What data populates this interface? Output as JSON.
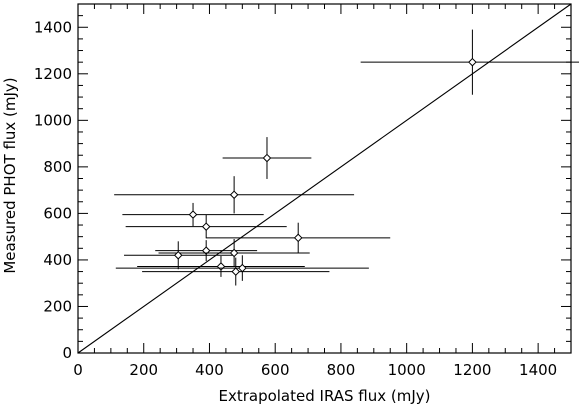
{
  "chart_data": {
    "type": "scatter",
    "title": "",
    "xlabel": "Extrapolated IRAS flux (mJy)",
    "ylabel": "Measured PHOT flux (mJy)",
    "xlim": [
      0,
      1500
    ],
    "ylim": [
      0,
      1500
    ],
    "x_ticks": [
      0,
      200,
      400,
      600,
      800,
      1000,
      1200,
      1400
    ],
    "y_ticks": [
      0,
      200,
      400,
      600,
      800,
      1000,
      1200,
      1400
    ],
    "x_minor_step": 50,
    "y_minor_step": 50,
    "grid": false,
    "reference_line": {
      "label": "",
      "x": [
        0,
        1500
      ],
      "y": [
        0,
        1500
      ]
    },
    "points": [
      {
        "x": 1200,
        "y": 1250,
        "xerr": 340,
        "yerr": 140
      },
      {
        "x": 575,
        "y": 838,
        "xerr": 135,
        "yerr": 90
      },
      {
        "x": 475,
        "y": 680,
        "xerr": 365,
        "yerr": 80
      },
      {
        "x": 350,
        "y": 595,
        "xerr": 215,
        "yerr": 50
      },
      {
        "x": 390,
        "y": 543,
        "xerr": 245,
        "yerr": 50
      },
      {
        "x": 670,
        "y": 495,
        "xerr": 280,
        "yerr": 65
      },
      {
        "x": 390,
        "y": 440,
        "xerr": 155,
        "yerr": 45
      },
      {
        "x": 475,
        "y": 430,
        "xerr": 230,
        "yerr": 60
      },
      {
        "x": 305,
        "y": 420,
        "xerr": 165,
        "yerr": 60
      },
      {
        "x": 435,
        "y": 372,
        "xerr": 255,
        "yerr": 45
      },
      {
        "x": 500,
        "y": 365,
        "xerr": 385,
        "yerr": 55
      },
      {
        "x": 480,
        "y": 350,
        "xerr": 285,
        "yerr": 60
      }
    ]
  }
}
